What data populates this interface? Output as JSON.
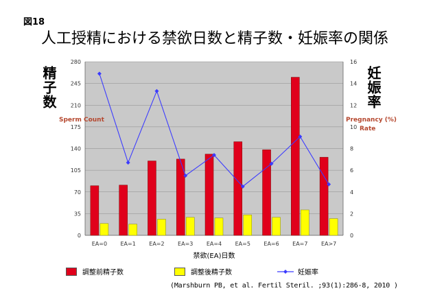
{
  "figure_label": "図18",
  "title": "人工授精における禁欲日数と精子数・妊娠率の関係",
  "side_label_left": "精子数",
  "side_label_right": "妊娠率",
  "citation": "(Marshburn PB, et al. Fertil Steril. ;93(1):286-8, 2010 )",
  "colors": {
    "plot_bg": "#c9c9c9",
    "bar_before": "#e0001b",
    "bar_after": "#ffff00",
    "line": "#3b3bff",
    "axis_title": "#b5472e"
  },
  "chart_data": {
    "type": "bar",
    "categories": [
      "EA=0",
      "EA=1",
      "EA=2",
      "EA=3",
      "EA=4",
      "EA=5",
      "EA=6",
      "EA=7",
      "EA>7"
    ],
    "series": [
      {
        "name": "調整前精子数",
        "type": "bar",
        "axis": "left",
        "values": [
          80,
          81,
          120,
          123,
          131,
          151,
          138,
          255,
          126
        ]
      },
      {
        "name": "調整後精子数",
        "type": "bar",
        "axis": "left",
        "values": [
          19,
          18,
          26,
          29,
          28,
          33,
          29,
          41,
          27
        ]
      },
      {
        "name": "妊娠率",
        "type": "line",
        "axis": "right",
        "values": [
          14.9,
          6.7,
          13.3,
          5.5,
          7.4,
          4.5,
          6.6,
          9.1,
          4.7
        ]
      }
    ],
    "y_left": {
      "label_line1": "Sperm Count",
      "label_line2": "",
      "ticks": [
        0,
        35,
        70,
        105,
        140,
        175,
        210,
        245,
        280
      ],
      "ylim": [
        0,
        280
      ]
    },
    "y_right": {
      "label_line1": "Pregnancy (%)",
      "label_line2": "Rate",
      "ticks": [
        0,
        2,
        4,
        6,
        8,
        10,
        12,
        14,
        16
      ],
      "ylim": [
        0,
        16
      ]
    },
    "xlabel": "禁欲(EA)日数",
    "grid": true
  }
}
